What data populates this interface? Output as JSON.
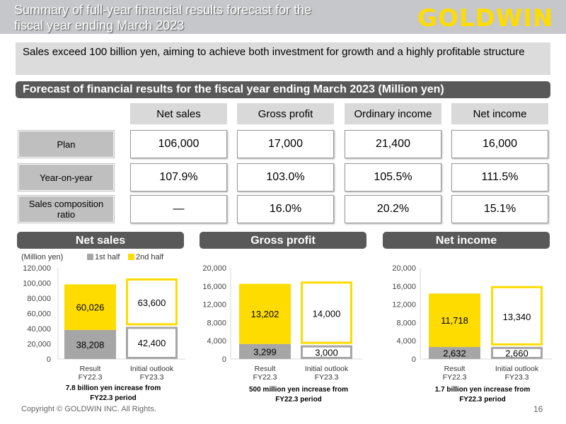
{
  "header": {
    "title_line1": "Summary of full-year financial results forecast for the",
    "title_line2": "fiscal year ending March 2023",
    "logo": "GOLDWIN"
  },
  "message": "Sales exceed 100 billion yen, aiming to achieve both investment for growth and a highly profitable structure",
  "table": {
    "title": "Forecast of financial results for the fiscal year ending March 2023 (Million yen)",
    "columns": [
      "Net sales",
      "Gross profit",
      "Ordinary income",
      "Net income"
    ],
    "rows": [
      {
        "label": "Plan",
        "values": [
          "106,000",
          "17,000",
          "21,400",
          "16,000"
        ]
      },
      {
        "label": "Year-on-year",
        "values": [
          "107.9%",
          "103.0%",
          "105.5%",
          "111.5%"
        ]
      },
      {
        "label": "Sales composition ratio",
        "values": [
          "—",
          "16.0%",
          "20.2%",
          "15.1%"
        ]
      }
    ]
  },
  "colors": {
    "first_half": "#a6a6a6",
    "second_half": "#ffdc00",
    "header_dark": "#595959"
  },
  "legend": {
    "unit": "(Million yen)",
    "first": "1st half",
    "second": "2nd half"
  },
  "chart_data": [
    {
      "type": "bar",
      "stacked": true,
      "title": "Net sales",
      "categories": [
        "Result FY22.3",
        "Initial outlook FY23.3"
      ],
      "series": [
        {
          "name": "1st half",
          "values": [
            38208,
            42400
          ]
        },
        {
          "name": "2nd half",
          "values": [
            60026,
            63600
          ]
        }
      ],
      "labels": [
        [
          "38,208",
          "42,400"
        ],
        [
          "60,026",
          "63,600"
        ]
      ],
      "ylim": [
        0,
        120000
      ],
      "ticks": [
        "0",
        "20,000",
        "40,000",
        "60,000",
        "80,000",
        "100,000",
        "120,000"
      ],
      "note": [
        "7.8 billion yen increase from",
        "FY22.3 period"
      ]
    },
    {
      "type": "bar",
      "stacked": true,
      "title": "Gross profit",
      "categories": [
        "Result FY22.3",
        "Initial outlook FY23.3"
      ],
      "series": [
        {
          "name": "1st half",
          "values": [
            3299,
            3000
          ]
        },
        {
          "name": "2nd half",
          "values": [
            13202,
            14000
          ]
        }
      ],
      "labels": [
        [
          "3,299",
          "3,000"
        ],
        [
          "13,202",
          "14,000"
        ]
      ],
      "ylim": [
        0,
        20000
      ],
      "ticks": [
        "0",
        "4,000",
        "8,000",
        "12,000",
        "16,000",
        "20,000"
      ],
      "note": [
        "500 million yen increase from",
        "FY22.3 period"
      ]
    },
    {
      "type": "bar",
      "stacked": true,
      "title": "Net income",
      "categories": [
        "Result FY22.3",
        "Initial outlook FY23.3"
      ],
      "series": [
        {
          "name": "1st half",
          "values": [
            2632,
            2660
          ]
        },
        {
          "name": "2nd half",
          "values": [
            11718,
            13340
          ]
        }
      ],
      "labels": [
        [
          "2,632",
          "2,660"
        ],
        [
          "11,718",
          "13,340"
        ]
      ],
      "ylim": [
        0,
        20000
      ],
      "ticks": [
        "0",
        "4,000",
        "8,000",
        "12,000",
        "16,000",
        "20,000"
      ],
      "note": [
        "1.7 billion yen increase from",
        "FY22.3 period"
      ]
    }
  ],
  "cat_lines": [
    [
      "Result",
      "FY22.3"
    ],
    [
      "Initial outlook",
      "FY23.3"
    ]
  ],
  "footer": {
    "copyright": "Copyright © GOLDWIN INC. All Rights.",
    "page": "16"
  }
}
